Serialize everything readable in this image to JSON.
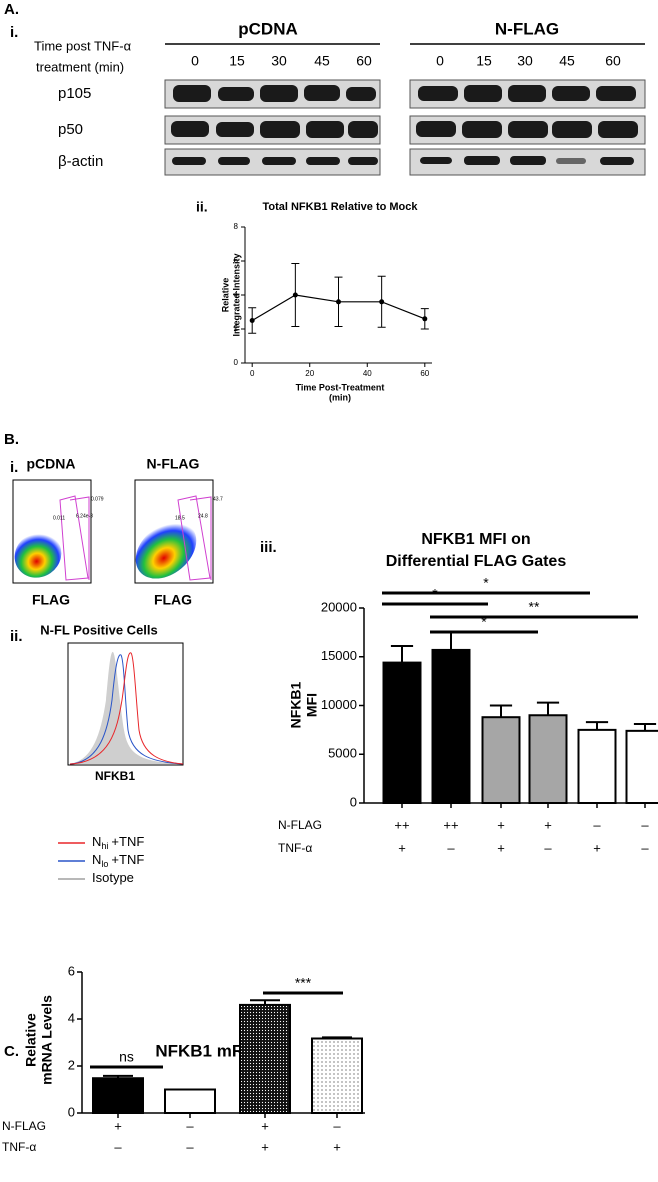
{
  "panels": {
    "a": "A.",
    "a_i": "i.",
    "a_ii": "ii.",
    "b": "B.",
    "b_i": "i.",
    "b_ii": "ii.",
    "b_iii": "iii.",
    "c": "C."
  },
  "blot": {
    "time_label": [
      "Time post TNF-α",
      "treatment (min)"
    ],
    "groups": [
      {
        "name": "pCDNA",
        "times": [
          "0",
          "15",
          "30",
          "45",
          "60"
        ]
      },
      {
        "name": "N-FLAG",
        "times": [
          "0",
          "15",
          "30",
          "45",
          "60"
        ]
      }
    ],
    "rows": [
      "p105",
      "p50",
      "β-actin"
    ]
  },
  "flow": {
    "plots": [
      {
        "name": "pCDNA",
        "xlabel": "FLAG",
        "gates": [
          "0.011",
          "6.24e-3",
          "0.079"
        ]
      },
      {
        "name": "N-FLAG",
        "xlabel": "FLAG",
        "gates": [
          "18.5",
          "24.8",
          "43.7"
        ]
      }
    ],
    "histogram": {
      "title": "N-FL Positive Cells",
      "xlabel": "NFKB1",
      "legend": [
        {
          "main": "N",
          "sub": "hi",
          "rest": "+TNF",
          "color": "#e8262a"
        },
        {
          "main": "N",
          "sub": "lo",
          "rest": "+TNF",
          "color": "#2a55c8"
        },
        {
          "main": "Isotype",
          "color": "#a0a0a0"
        }
      ]
    }
  },
  "chart_data": [
    {
      "type": "line",
      "title": "Total NFKB1 Relative to Mock",
      "ylabel": [
        "Relative",
        "Integrated Intensity"
      ],
      "xlabel": [
        "Time Post-Treatment",
        "(min)"
      ],
      "x": [
        0,
        15,
        30,
        45,
        60
      ],
      "values": [
        2.5,
        4.0,
        3.6,
        3.6,
        2.6
      ],
      "errors": [
        0.75,
        1.85,
        1.45,
        1.5,
        0.6
      ],
      "color": "#000000",
      "xlim": [
        -2.5,
        62.5
      ],
      "xticks": [
        0,
        20,
        40,
        60
      ],
      "ylim": [
        0,
        8
      ],
      "yticks": [
        0,
        2,
        4,
        6,
        8
      ]
    },
    {
      "type": "bar",
      "title": [
        "NFKB1 MFI on",
        "Differential FLAG Gates"
      ],
      "ylabel": [
        "NFKB1",
        "MFI"
      ],
      "values": [
        14400,
        15700,
        8800,
        9000,
        7500,
        7400
      ],
      "errors": [
        1700,
        1800,
        1200,
        1300,
        800,
        700
      ],
      "colors": [
        "#000000",
        "#000000",
        "#a6a6a6",
        "#a6a6a6",
        "#ffffff",
        "#ffffff"
      ],
      "ylim": [
        0,
        20000
      ],
      "yticks": [
        0,
        5000,
        10000,
        15000,
        20000
      ],
      "conditions": [
        {
          "name": "N-FLAG",
          "labels": [
            "++",
            "++",
            "+",
            "+",
            "–",
            "–"
          ]
        },
        {
          "name": "TNF-α",
          "labels": [
            "+",
            "–",
            "+",
            "–",
            "+",
            "–"
          ]
        }
      ],
      "annotations": [
        "*",
        "*",
        "**",
        "*"
      ]
    },
    {
      "type": "bar",
      "title": "NFKB1 mRNA",
      "ylabel": [
        "Relative",
        "mRNA Levels"
      ],
      "values": [
        1.48,
        1.0,
        4.6,
        3.17
      ],
      "errors": [
        0.1,
        0,
        0.2,
        0.05
      ],
      "colors": [
        "#000000",
        "#ffffff",
        "#111111",
        "#ffffff"
      ],
      "fills": [
        "solid",
        "solid",
        "dense-dots",
        "sparse-dots"
      ],
      "ylim": [
        0,
        6
      ],
      "yticks": [
        0,
        2,
        4,
        6
      ],
      "conditions": [
        {
          "name": "N-FLAG",
          "labels": [
            "+",
            "–",
            "+",
            "–"
          ]
        },
        {
          "name": "TNF-α",
          "labels": [
            "–",
            "–",
            "+",
            "+"
          ]
        }
      ],
      "annotations": [
        "ns",
        "***"
      ]
    }
  ]
}
